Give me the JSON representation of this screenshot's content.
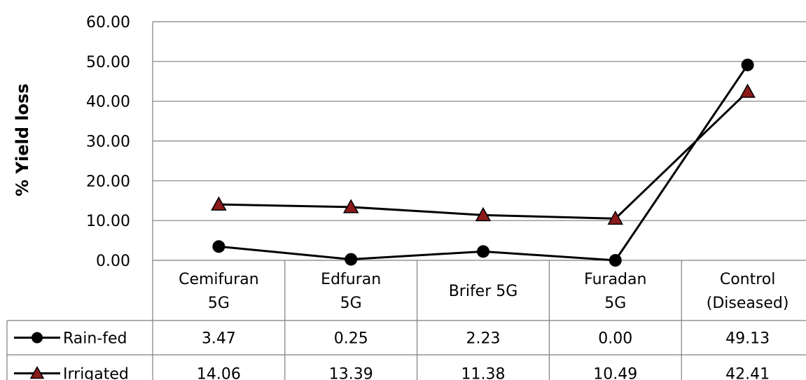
{
  "chart_data": {
    "type": "line",
    "ylabel": "% Yield loss",
    "ylim": [
      0,
      60
    ],
    "yticks": [
      "0.00",
      "10.00",
      "20.00",
      "30.00",
      "40.00",
      "50.00",
      "60.00"
    ],
    "categories": [
      [
        "Cemifuran",
        "5G"
      ],
      [
        "Edfuran",
        "5G"
      ],
      [
        "Brifer 5G"
      ],
      [
        "Furadan",
        "5G"
      ],
      [
        "Control",
        "(Diseased)"
      ]
    ],
    "grid": true,
    "legend": "data-table",
    "series": [
      {
        "name": "Rain-fed",
        "marker": "circle",
        "color": "#000000",
        "marker_stroke": "#000000",
        "values": [
          3.47,
          0.25,
          2.23,
          0.0,
          49.13
        ],
        "labels": [
          "3.47",
          "0.25",
          "2.23",
          "0.00",
          "49.13"
        ]
      },
      {
        "name": "Irrigated",
        "marker": "triangle",
        "color": "#000000",
        "marker_fill": "#8b1a1a",
        "values": [
          14.06,
          13.39,
          11.38,
          10.49,
          42.41
        ],
        "labels": [
          "14.06",
          "13.39",
          "11.38",
          "10.49",
          "42.41"
        ]
      }
    ]
  }
}
